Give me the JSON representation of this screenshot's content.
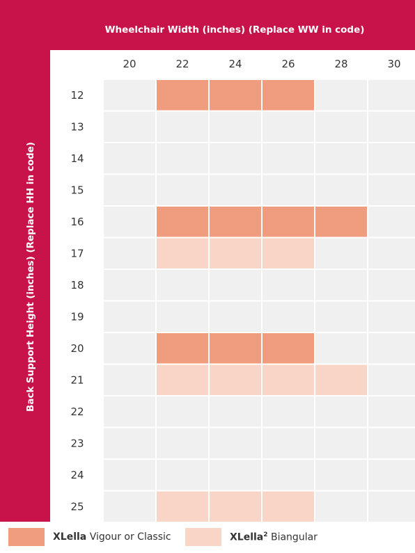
{
  "chart_data": {
    "type": "heatmap",
    "title": "Wheelchair Width (inches) (Replace WW in code)",
    "ylabel": "Back Support Height (inches) (Replace HH in code)",
    "x_categories": [
      "20",
      "22",
      "24",
      "26",
      "28",
      "30"
    ],
    "y_categories": [
      "12",
      "13",
      "14",
      "15",
      "16",
      "17",
      "18",
      "19",
      "20",
      "21",
      "22",
      "23",
      "24",
      "25"
    ],
    "series": [
      {
        "name": "XLella Vigour or Classic",
        "color": "#f09c7f",
        "cells": [
          [
            "22",
            "12"
          ],
          [
            "24",
            "12"
          ],
          [
            "26",
            "12"
          ],
          [
            "22",
            "16"
          ],
          [
            "24",
            "16"
          ],
          [
            "26",
            "16"
          ],
          [
            "28",
            "16"
          ],
          [
            "22",
            "20"
          ],
          [
            "24",
            "20"
          ],
          [
            "26",
            "20"
          ]
        ]
      },
      {
        "name": "XLella² Biangular",
        "color": "#f8d5c6",
        "cells": [
          [
            "22",
            "17"
          ],
          [
            "24",
            "17"
          ],
          [
            "26",
            "17"
          ],
          [
            "22",
            "21"
          ],
          [
            "24",
            "21"
          ],
          [
            "26",
            "21"
          ],
          [
            "28",
            "21"
          ],
          [
            "22",
            "25"
          ],
          [
            "24",
            "25"
          ],
          [
            "26",
            "25"
          ]
        ]
      }
    ]
  },
  "colors": {
    "accent": "#c8134a",
    "empty_cell": "#f0f0f0",
    "grid_line": "#ffffff"
  },
  "legend": {
    "item1": {
      "bold": "XLella",
      "text": "Vigour or Classic"
    },
    "item2": {
      "bold": "XLella",
      "sup": "2",
      "text": "Biangular"
    }
  }
}
